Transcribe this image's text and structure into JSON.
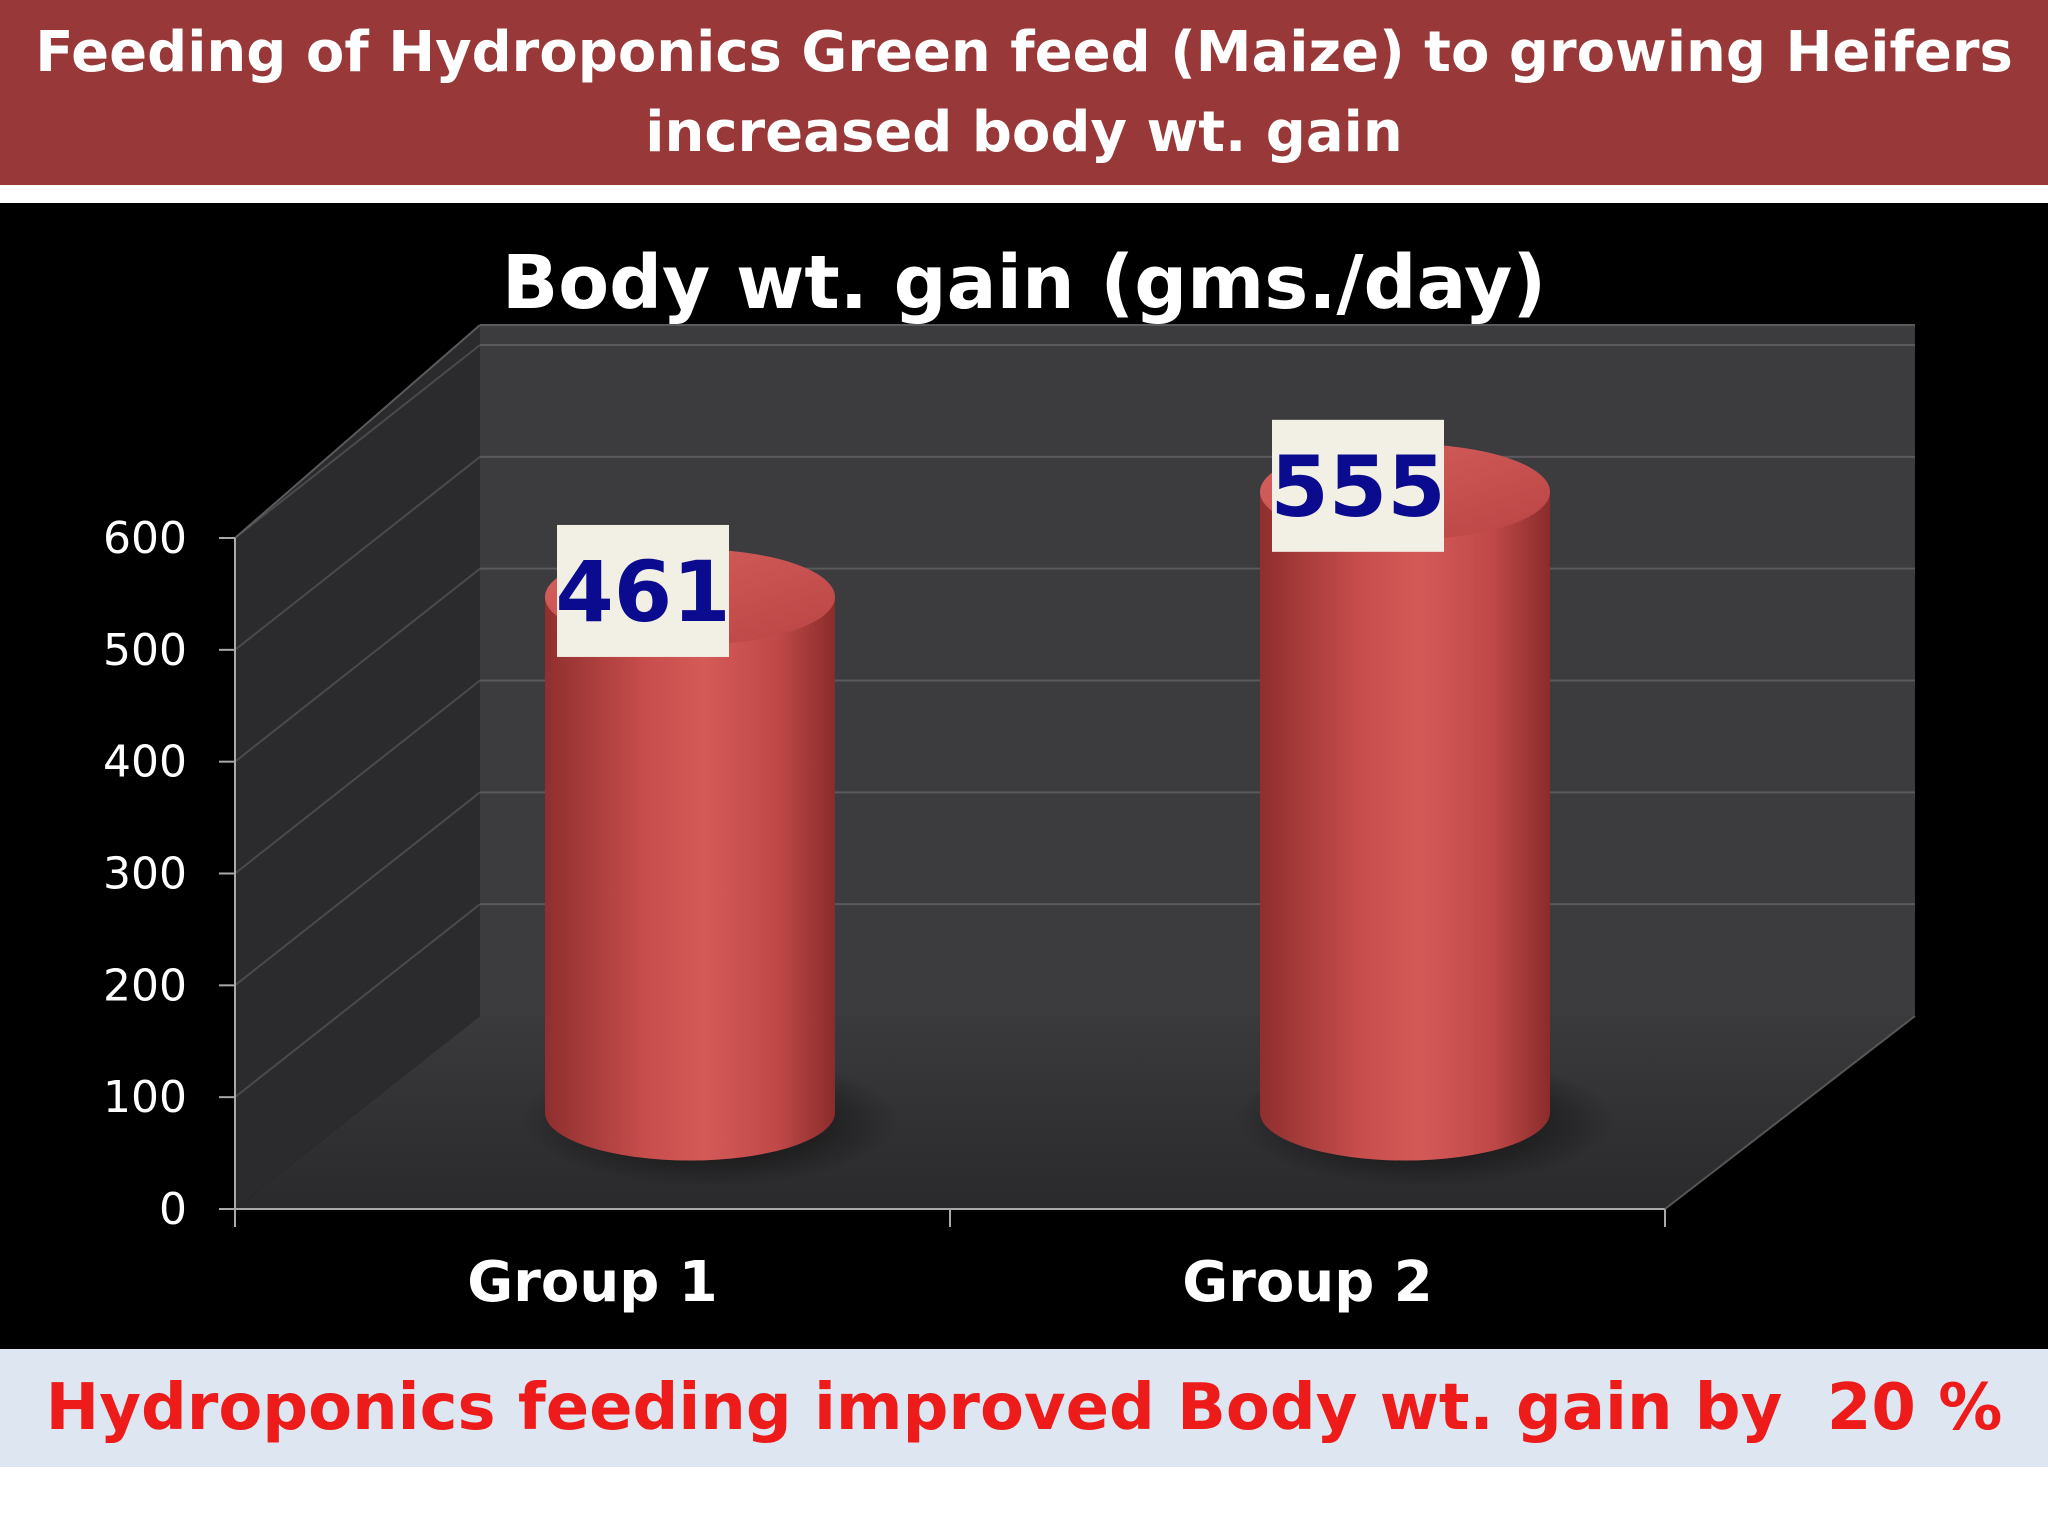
{
  "header": {
    "title_line1": "Feeding of Hydroponics Green feed (Maize) to growing Heifers",
    "title_line2": "increased body wt. gain"
  },
  "chart_data": {
    "type": "bar",
    "title": "Body wt. gain (gms./day)",
    "categories": [
      "Group 1",
      "Group 2"
    ],
    "values": [
      461,
      555
    ],
    "data_labels": [
      "461",
      "555"
    ],
    "ylim": [
      0,
      600
    ],
    "yticks": [
      0,
      100,
      200,
      300,
      400,
      500,
      600
    ],
    "ytick_labels": [
      "0",
      "100",
      "200",
      "300",
      "400",
      "500",
      "600"
    ],
    "xlabel": "",
    "ylabel": "",
    "grid": true,
    "legend": "none",
    "style": "3d-cylinder",
    "bar_color": "#c9504f",
    "label_text_color": "#0b0b8f",
    "label_box_color": "#f2f0e4"
  },
  "footer": {
    "text": "Hydroponics feeding improved Body wt. gain by  20 %"
  },
  "colors": {
    "banner": "#993838",
    "chart_background": "#000000",
    "footer_background": "#dde6f1",
    "footer_text": "#ee1b1b"
  }
}
